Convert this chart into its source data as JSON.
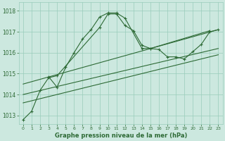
{
  "title": "Graphe pression niveau de la mer (hPa)",
  "bg_color": "#cce8df",
  "grid_color": "#99ccbb",
  "line_color": "#2d6a35",
  "xlim": [
    -0.5,
    23.5
  ],
  "ylim": [
    1012.6,
    1018.4
  ],
  "yticks": [
    1013,
    1014,
    1015,
    1016,
    1017,
    1018
  ],
  "xticks": [
    0,
    1,
    2,
    3,
    4,
    5,
    6,
    7,
    8,
    9,
    10,
    11,
    12,
    13,
    14,
    15,
    16,
    17,
    18,
    19,
    20,
    21,
    22,
    23
  ],
  "series_main": {
    "x": [
      0,
      1,
      2,
      3,
      4,
      9,
      10,
      11,
      12,
      13,
      14,
      15,
      22
    ],
    "y": [
      1012.8,
      1013.2,
      1014.2,
      1014.8,
      1014.9,
      1017.2,
      1017.85,
      1017.85,
      1017.3,
      1017.05,
      1016.35,
      1016.2,
      1017.05
    ]
  },
  "series_second": {
    "x": [
      3,
      4,
      5,
      6,
      7,
      8,
      9,
      10,
      11,
      12,
      14,
      15,
      16,
      17,
      18,
      19,
      20,
      21,
      22,
      23
    ],
    "y": [
      1014.85,
      1014.35,
      1015.3,
      1016.0,
      1016.65,
      1017.1,
      1017.7,
      1017.9,
      1017.9,
      1017.65,
      1016.2,
      1016.2,
      1016.15,
      1015.8,
      1015.8,
      1015.7,
      1016.05,
      1016.4,
      1017.0,
      1017.1
    ]
  },
  "trend_lines": [
    {
      "x": [
        0,
        23
      ],
      "y": [
        1013.6,
        1015.9
      ]
    },
    {
      "x": [
        0,
        23
      ],
      "y": [
        1014.0,
        1016.2
      ]
    },
    {
      "x": [
        0,
        23
      ],
      "y": [
        1014.5,
        1017.1
      ]
    }
  ]
}
